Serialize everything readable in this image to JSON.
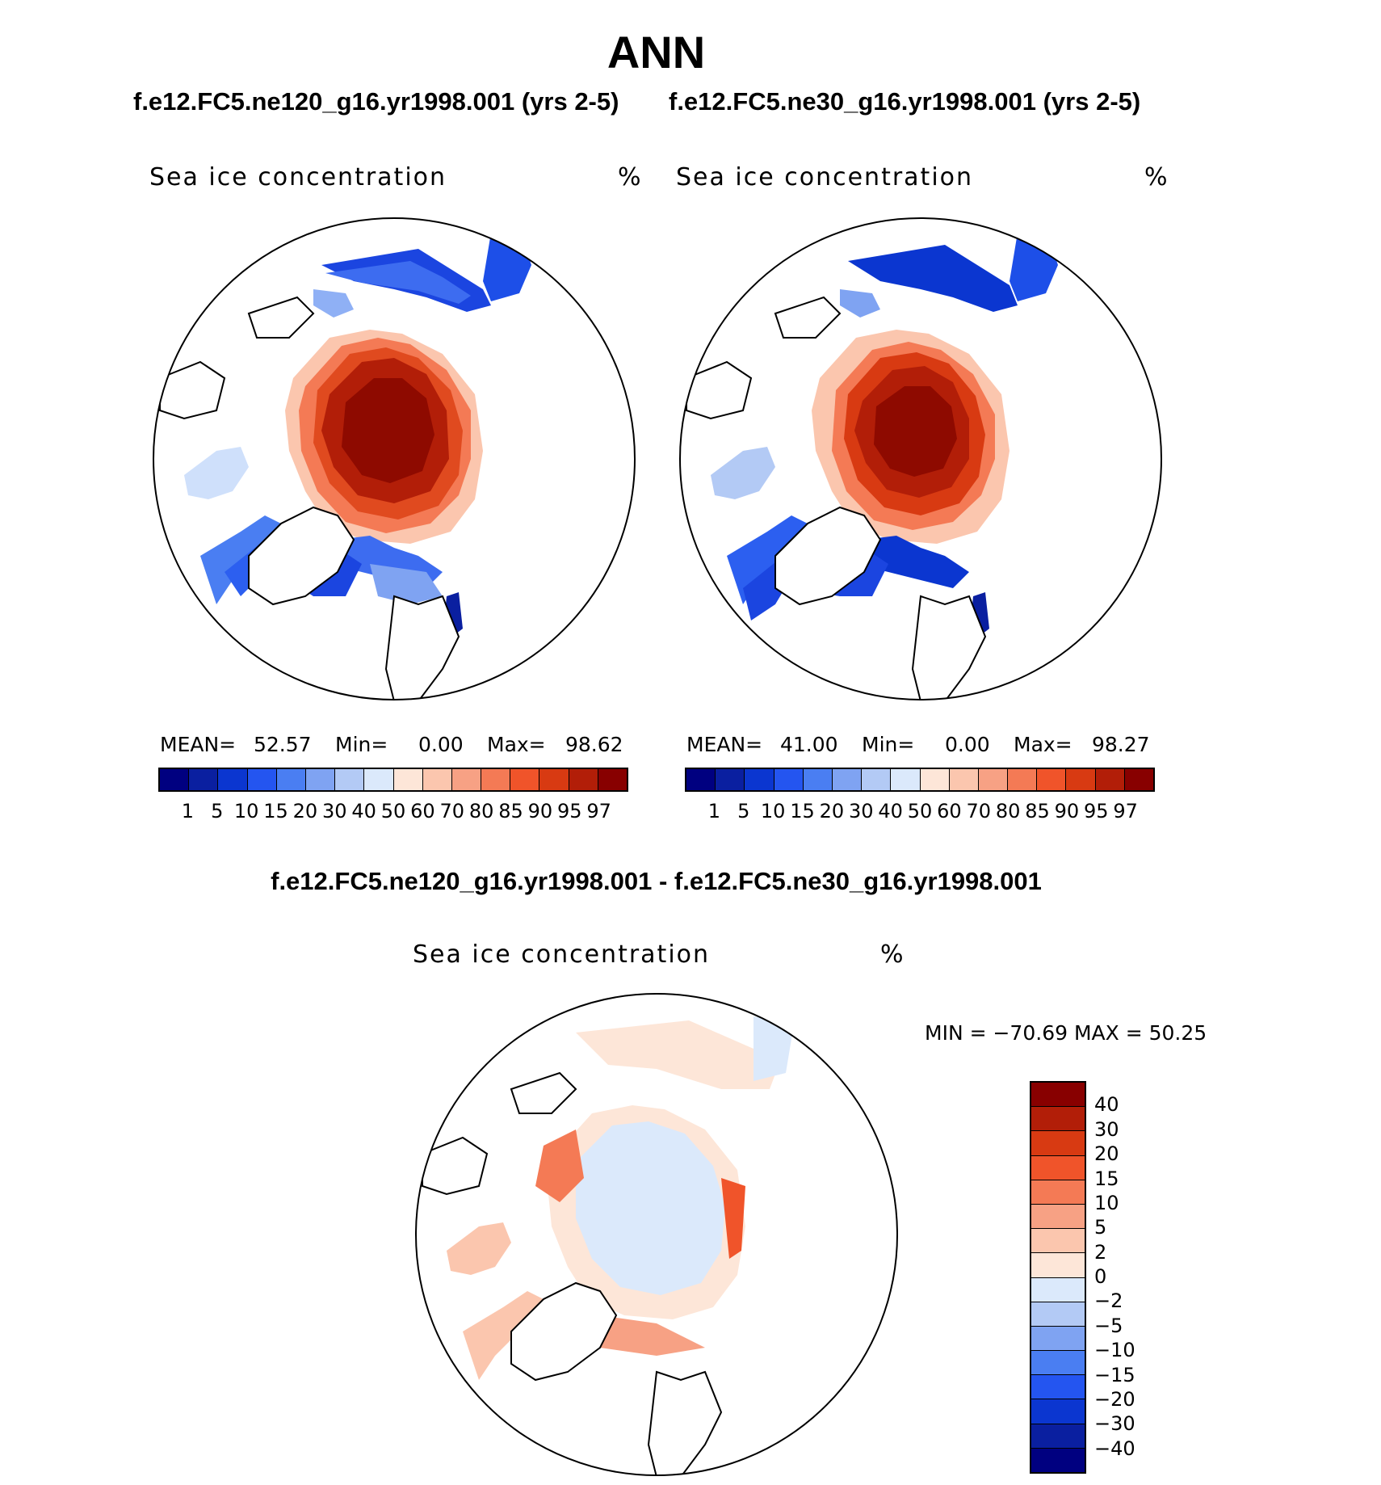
{
  "title": "ANN",
  "panels": [
    {
      "case_title": "f.e12.FC5.ne120_g16.yr1998.001 (yrs 2-5)",
      "variable_label": "Sea ice concentration",
      "units": "%",
      "mean_label": "MEAN=",
      "mean_value": "52.57",
      "min_label": "Min=",
      "min_value": "0.00",
      "max_label": "Max=",
      "max_value": "98.62"
    },
    {
      "case_title": "f.e12.FC5.ne30_g16.yr1998.001 (yrs 2-5)",
      "variable_label": "Sea ice concentration",
      "units": "%",
      "mean_label": "MEAN=",
      "mean_value": "41.00",
      "min_label": "Min=",
      "min_value": "0.00",
      "max_label": "Max=",
      "max_value": "98.27"
    }
  ],
  "diff_panel": {
    "case_title": "f.e12.FC5.ne120_g16.yr1998.001 - f.e12.FC5.ne30_g16.yr1998.001",
    "variable_label": "Sea ice concentration",
    "units": "%",
    "minmax_text": "MIN = −70.69 MAX =   50.25"
  },
  "abs_colorbar": {
    "colors": [
      "#000080",
      "#0a1fa0",
      "#0b36d0",
      "#2455f0",
      "#4a7ef2",
      "#7fa3f2",
      "#b3caf5",
      "#dbe9fb",
      "#fde6d8",
      "#fbc6ae",
      "#f7a184",
      "#f47a55",
      "#f0542a",
      "#d83a12",
      "#b21e08",
      "#880000"
    ],
    "ticks": [
      "1",
      "5",
      "10",
      "15",
      "20",
      "30",
      "40",
      "50",
      "60",
      "70",
      "80",
      "85",
      "90",
      "95",
      "97"
    ]
  },
  "diff_colorbar": {
    "colors": [
      "#880000",
      "#b21e08",
      "#d83a12",
      "#f0542a",
      "#f47a55",
      "#f7a184",
      "#fbc6ae",
      "#fde6d8",
      "#dbe9fb",
      "#b3caf5",
      "#7fa3f2",
      "#4a7ef2",
      "#2455f0",
      "#0b36d0",
      "#0a1fa0",
      "#000080"
    ],
    "ticks": [
      "40",
      "30",
      "20",
      "15",
      "10",
      "5",
      "2",
      "0",
      "−2",
      "−5",
      "−10",
      "−15",
      "−20",
      "−30",
      "−40"
    ]
  }
}
